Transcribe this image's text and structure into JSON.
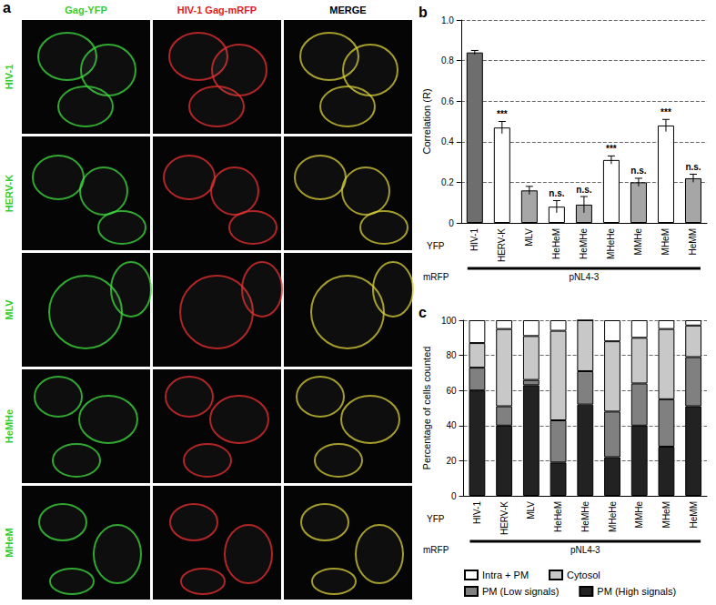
{
  "panel_a": {
    "label": "a",
    "column_headers": [
      "Gag-YFP",
      "HIV-1 Gag-mRFP",
      "MERGE"
    ],
    "row_labels": [
      "HIV-1",
      "HERV-K",
      "MLV",
      "HeMHe",
      "MHeM"
    ]
  },
  "chart_data": [
    {
      "type": "bar",
      "title": "b",
      "categories": [
        "HIV-1",
        "HERV-K",
        "MLV",
        "HeHeM",
        "HeMHe",
        "MHeHe",
        "MMHe",
        "MHeM",
        "HeMM"
      ],
      "values": [
        0.84,
        0.47,
        0.16,
        0.08,
        0.09,
        0.31,
        0.2,
        0.48,
        0.22
      ],
      "errors": [
        0.01,
        0.03,
        0.02,
        0.03,
        0.04,
        0.02,
        0.02,
        0.03,
        0.02
      ],
      "significance": [
        null,
        "***",
        null,
        "n.s.",
        "n.s.",
        "***",
        "n.s.",
        "***",
        "n.s."
      ],
      "colors": [
        "#6e6e6e",
        "#ffffff",
        "#a6a6a6",
        "#ffffff",
        "#a6a6a6",
        "#ffffff",
        "#a6a6a6",
        "#ffffff",
        "#a6a6a6"
      ],
      "y_label": "Correlation (R)",
      "ylim": [
        0,
        1
      ],
      "yticks": [
        0,
        0.2,
        0.4,
        0.6,
        0.8,
        {
          "value": 1,
          "label": "1.0"
        }
      ],
      "grid": true,
      "x_row_labels": [
        "YFP",
        "mRFP"
      ],
      "mrfp_label": "pNL4-3"
    },
    {
      "type": "bar",
      "title": "c",
      "stacked": true,
      "categories": [
        "HIV-1",
        "HERV-K",
        "MLV",
        "HeHeM",
        "HeMHe",
        "MHeHe",
        "MMHe",
        "MHeM",
        "HeMM"
      ],
      "series": [
        {
          "name": "PM (High signals)",
          "color": "#222222",
          "values": [
            60,
            40,
            63,
            19,
            52,
            22,
            40,
            28,
            51
          ]
        },
        {
          "name": "PM (Low signals)",
          "color": "#808080",
          "values": [
            13,
            11,
            3,
            24,
            19,
            26,
            24,
            27,
            28
          ]
        },
        {
          "name": "Cytosol",
          "color": "#c8c8c8",
          "values": [
            14,
            44,
            25,
            51,
            29,
            40,
            26,
            40,
            18
          ]
        },
        {
          "name": "Intra + PM",
          "color": "#ffffff",
          "values": [
            13,
            5,
            9,
            6,
            0,
            12,
            10,
            5,
            3
          ]
        }
      ],
      "y_label": "Percentage of cells counted",
      "ylim": [
        0,
        100
      ],
      "yticks": [
        0,
        20,
        40,
        60,
        80,
        100
      ],
      "grid": true,
      "legend": "bottom",
      "x_row_labels": [
        "YFP",
        "mRFP"
      ],
      "mrfp_label": "pNL4-3"
    }
  ]
}
